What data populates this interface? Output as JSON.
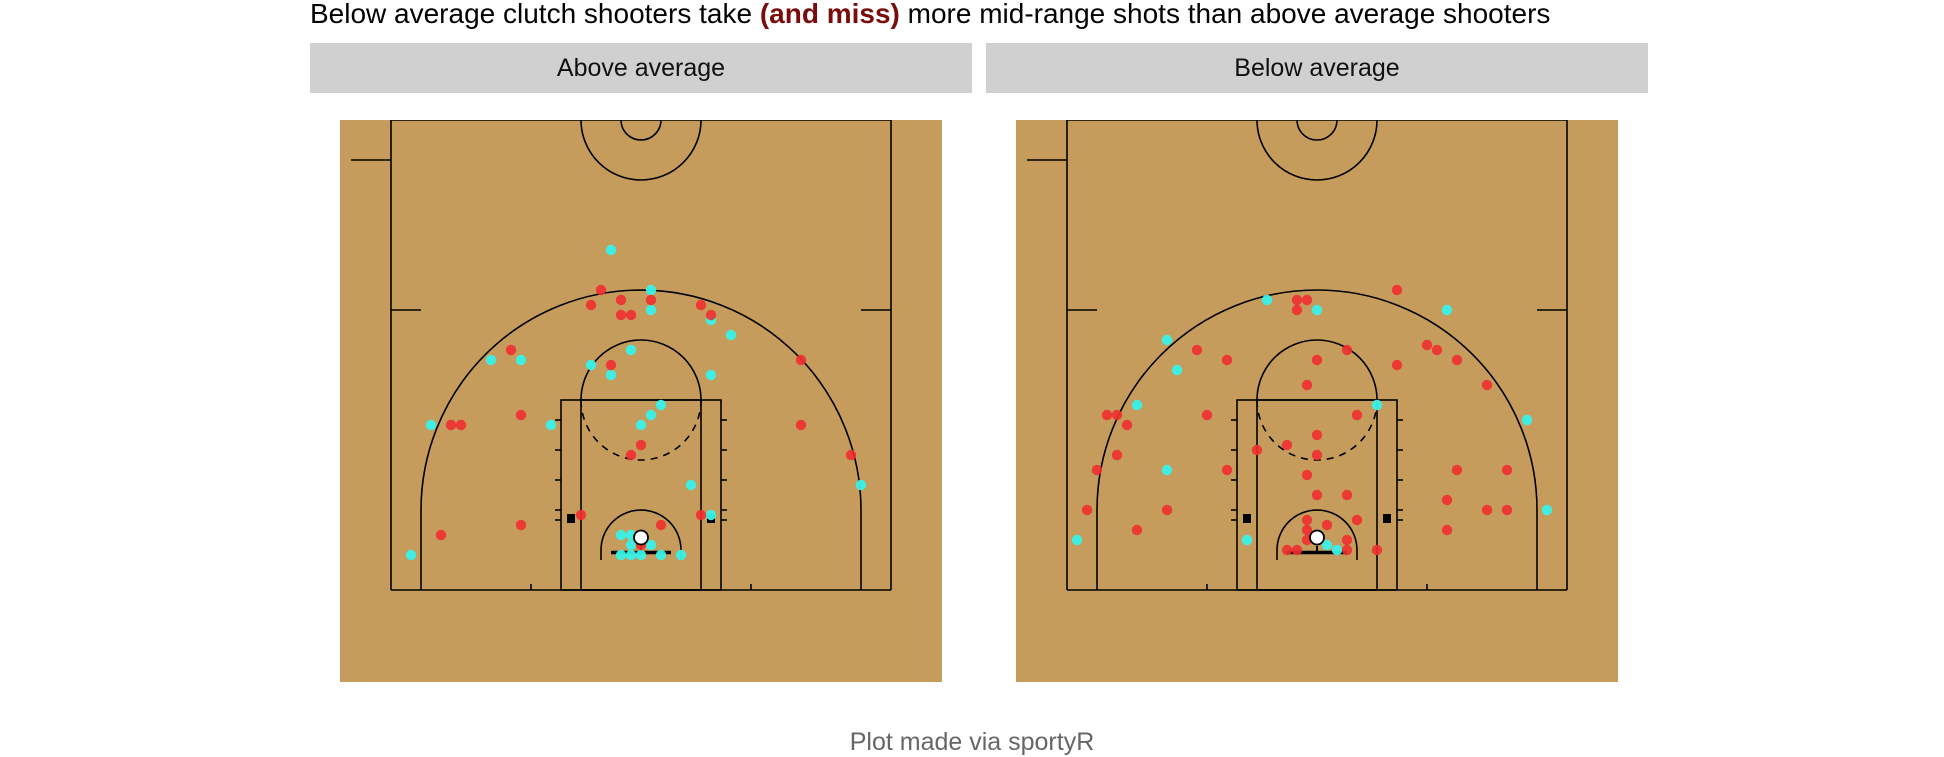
{
  "title": {
    "part1": "Below average clutch shooters take ",
    "highlight": "(and miss)",
    "part2": " more mid-range shots than above average shooters",
    "highlight_color": "#7a0c0c"
  },
  "caption": "Plot made via sportyR",
  "colors": {
    "court": "#c69c5d",
    "lines": "#000000",
    "strip": "#d0d0d0",
    "made": "#38f2e8",
    "missed": "#ef2f2f",
    "overlap": "#c94a4a"
  },
  "chart_data": [
    {
      "type": "scatter",
      "facet": "Above average",
      "x_range": [
        -30,
        30
      ],
      "y_range": [
        -7,
        47
      ],
      "made": [
        {
          "x": -3,
          "y": 30
        },
        {
          "x": 1,
          "y": 26
        },
        {
          "x": 1,
          "y": 24
        },
        {
          "x": 7,
          "y": 23
        },
        {
          "x": 9,
          "y": 21.5
        },
        {
          "x": -15,
          "y": 19
        },
        {
          "x": -12,
          "y": 19
        },
        {
          "x": -1,
          "y": 20
        },
        {
          "x": -3,
          "y": 17.5
        },
        {
          "x": -5,
          "y": 18.5
        },
        {
          "x": 7,
          "y": 17.5
        },
        {
          "x": 2,
          "y": 14.5
        },
        {
          "x": 1,
          "y": 13.5
        },
        {
          "x": 0,
          "y": 12.5
        },
        {
          "x": -21,
          "y": 12.5
        },
        {
          "x": -9,
          "y": 12.5
        },
        {
          "x": 5,
          "y": 6.5
        },
        {
          "x": 7,
          "y": 3.5
        },
        {
          "x": -23,
          "y": -0.5
        },
        {
          "x": 22,
          "y": 6.5
        },
        {
          "x": -2,
          "y": 1.5
        },
        {
          "x": -1,
          "y": 1.5
        },
        {
          "x": -1,
          "y": 0.5
        },
        {
          "x": 1,
          "y": 0.5
        },
        {
          "x": -2,
          "y": -0.5
        },
        {
          "x": -1,
          "y": -0.5
        },
        {
          "x": 0,
          "y": -0.5
        },
        {
          "x": 2,
          "y": -0.5
        },
        {
          "x": 4,
          "y": -0.5
        }
      ],
      "missed": [
        {
          "x": -4,
          "y": 26
        },
        {
          "x": -5,
          "y": 24.5
        },
        {
          "x": -2,
          "y": 25
        },
        {
          "x": 1,
          "y": 25
        },
        {
          "x": -2,
          "y": 23.5
        },
        {
          "x": -1,
          "y": 23.5
        },
        {
          "x": 6,
          "y": 24.5
        },
        {
          "x": 7,
          "y": 23.5
        },
        {
          "x": -13,
          "y": 20
        },
        {
          "x": 16,
          "y": 19
        },
        {
          "x": -3,
          "y": 18.5
        },
        {
          "x": -12,
          "y": 13.5
        },
        {
          "x": -19,
          "y": 12.5
        },
        {
          "x": -18,
          "y": 12.5
        },
        {
          "x": 16,
          "y": 12.5
        },
        {
          "x": 0,
          "y": 10.5
        },
        {
          "x": -1,
          "y": 9.5
        },
        {
          "x": 21,
          "y": 9.5
        },
        {
          "x": -6,
          "y": 3.5
        },
        {
          "x": 6,
          "y": 3.5
        },
        {
          "x": -12,
          "y": 2.5
        },
        {
          "x": -20,
          "y": 1.5
        },
        {
          "x": 2,
          "y": 2.5
        },
        {
          "x": 0,
          "y": 0.5
        }
      ]
    },
    {
      "type": "scatter",
      "facet": "Below average",
      "x_range": [
        -30,
        30
      ],
      "y_range": [
        -7,
        47
      ],
      "made": [
        {
          "x": 0,
          "y": 24
        },
        {
          "x": -5,
          "y": 25
        },
        {
          "x": 13,
          "y": 24
        },
        {
          "x": -15,
          "y": 21
        },
        {
          "x": -14,
          "y": 18
        },
        {
          "x": -18,
          "y": 14.5
        },
        {
          "x": 6,
          "y": 14.5
        },
        {
          "x": 21,
          "y": 13
        },
        {
          "x": -15,
          "y": 8
        },
        {
          "x": -7,
          "y": 1
        },
        {
          "x": -24,
          "y": 1
        },
        {
          "x": 23,
          "y": 4
        },
        {
          "x": 1,
          "y": 0.5
        },
        {
          "x": 2,
          "y": 0
        }
      ],
      "missed": [
        {
          "x": -2,
          "y": 25
        },
        {
          "x": -1,
          "y": 25
        },
        {
          "x": -2,
          "y": 24
        },
        {
          "x": 8,
          "y": 26
        },
        {
          "x": -12,
          "y": 20
        },
        {
          "x": -9,
          "y": 19
        },
        {
          "x": 3,
          "y": 20
        },
        {
          "x": 0,
          "y": 19
        },
        {
          "x": 11,
          "y": 20.5
        },
        {
          "x": 12,
          "y": 20
        },
        {
          "x": 14,
          "y": 19
        },
        {
          "x": 8,
          "y": 18.5
        },
        {
          "x": -1,
          "y": 16.5
        },
        {
          "x": 17,
          "y": 16.5
        },
        {
          "x": 4,
          "y": 13.5
        },
        {
          "x": -21,
          "y": 13.5
        },
        {
          "x": -20,
          "y": 13.5
        },
        {
          "x": -11,
          "y": 13.5
        },
        {
          "x": -19,
          "y": 12.5
        },
        {
          "x": 0,
          "y": 11.5
        },
        {
          "x": -3,
          "y": 10.5
        },
        {
          "x": 0,
          "y": 9.5
        },
        {
          "x": -6,
          "y": 10
        },
        {
          "x": -20,
          "y": 9.5
        },
        {
          "x": -22,
          "y": 8
        },
        {
          "x": -9,
          "y": 8
        },
        {
          "x": -1,
          "y": 7.5
        },
        {
          "x": 14,
          "y": 8
        },
        {
          "x": 19,
          "y": 8
        },
        {
          "x": -23,
          "y": 4
        },
        {
          "x": -15,
          "y": 4
        },
        {
          "x": 0,
          "y": 5.5
        },
        {
          "x": 3,
          "y": 5.5
        },
        {
          "x": 13,
          "y": 5
        },
        {
          "x": 17,
          "y": 4
        },
        {
          "x": 19,
          "y": 4
        },
        {
          "x": -1,
          "y": 3
        },
        {
          "x": 4,
          "y": 3
        },
        {
          "x": 13,
          "y": 2
        },
        {
          "x": -18,
          "y": 2
        },
        {
          "x": -1,
          "y": 2
        },
        {
          "x": 1,
          "y": 2.5
        },
        {
          "x": -1,
          "y": 1
        },
        {
          "x": 3,
          "y": 1
        },
        {
          "x": -3,
          "y": 0
        },
        {
          "x": -2,
          "y": 0
        },
        {
          "x": 3,
          "y": 0
        },
        {
          "x": 6,
          "y": 0
        }
      ]
    }
  ]
}
